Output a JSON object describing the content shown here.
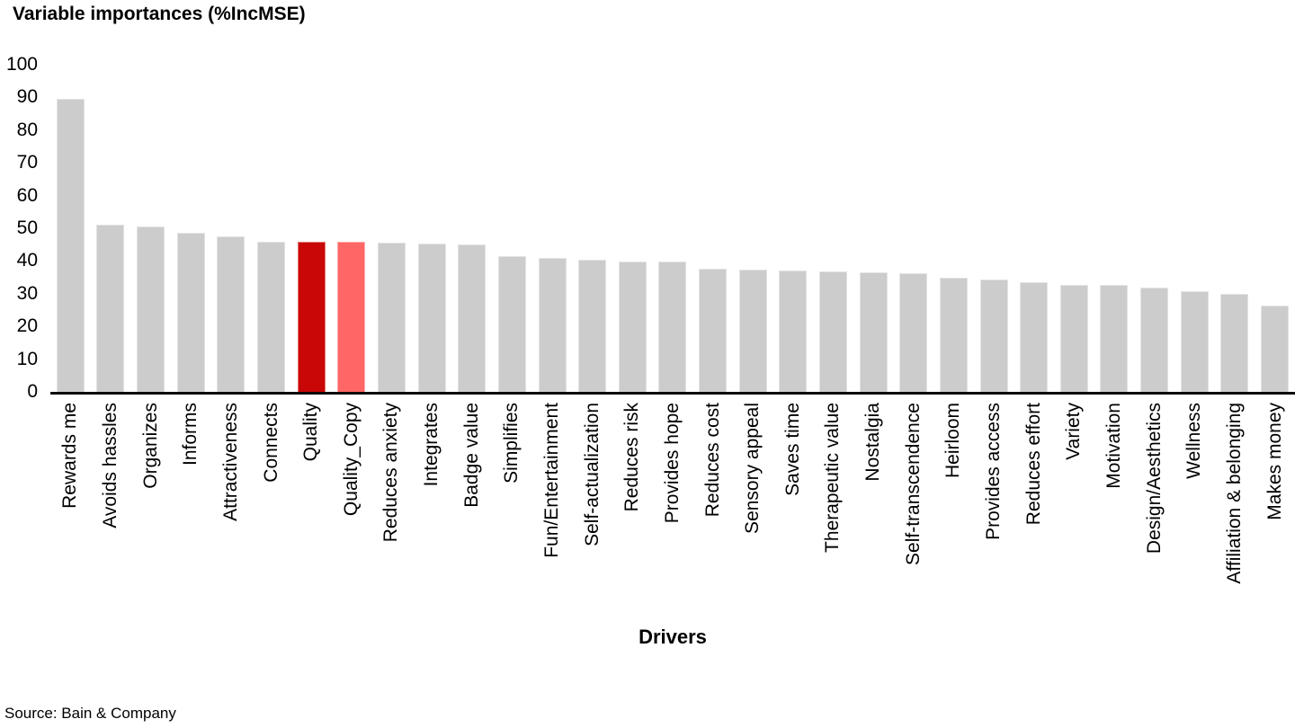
{
  "chart_data": {
    "type": "bar",
    "title": "Variable importances (%IncMSE)",
    "xlabel": "Drivers",
    "ylabel": "",
    "ylim": [
      0,
      100
    ],
    "yticks": [
      100,
      90,
      80,
      70,
      60,
      50,
      40,
      30,
      20,
      10,
      0
    ],
    "grid": false,
    "legend_position": "none",
    "categories": [
      "Rewards me",
      "Avoids hassles",
      "Organizes",
      "Informs",
      "Attractiveness",
      "Connects",
      "Quality",
      "Quality_Copy",
      "Reduces anxiety",
      "Integrates",
      "Badge value",
      "Simplifies",
      "Fun/Entertainment",
      "Self-actualization",
      "Reduces risk",
      "Provides hope",
      "Reduces cost",
      "Sensory appeal",
      "Saves time",
      "Therapeutic value",
      "Nostalgia",
      "Self-transcendence",
      "Heirloom",
      "Provides access",
      "Reduces effort",
      "Variety",
      "Motivation",
      "Design/Aesthetics",
      "Wellness",
      "Affiliation & belonging",
      "Makes money"
    ],
    "values": [
      89.5,
      51,
      50.5,
      48.5,
      47.5,
      46,
      46,
      45.8,
      45.6,
      45.2,
      45,
      41.6,
      41,
      40.4,
      39.9,
      39.8,
      37.7,
      37.3,
      37.2,
      36.8,
      36.6,
      36.4,
      35,
      34.4,
      33.5,
      32.8,
      32.7,
      31.9,
      30.7,
      29.9,
      26.5
    ],
    "bar_color_default": "#cccccc",
    "highlighted_bars": [
      {
        "category": "Quality",
        "color": "#c90707"
      },
      {
        "category": "Quality_Copy",
        "color": "#ff6666"
      }
    ]
  },
  "source_note": "Source: Bain & Company",
  "colors": {
    "axis_line": "#0a0a0a",
    "text": "#000000",
    "background": "#ffffff"
  }
}
